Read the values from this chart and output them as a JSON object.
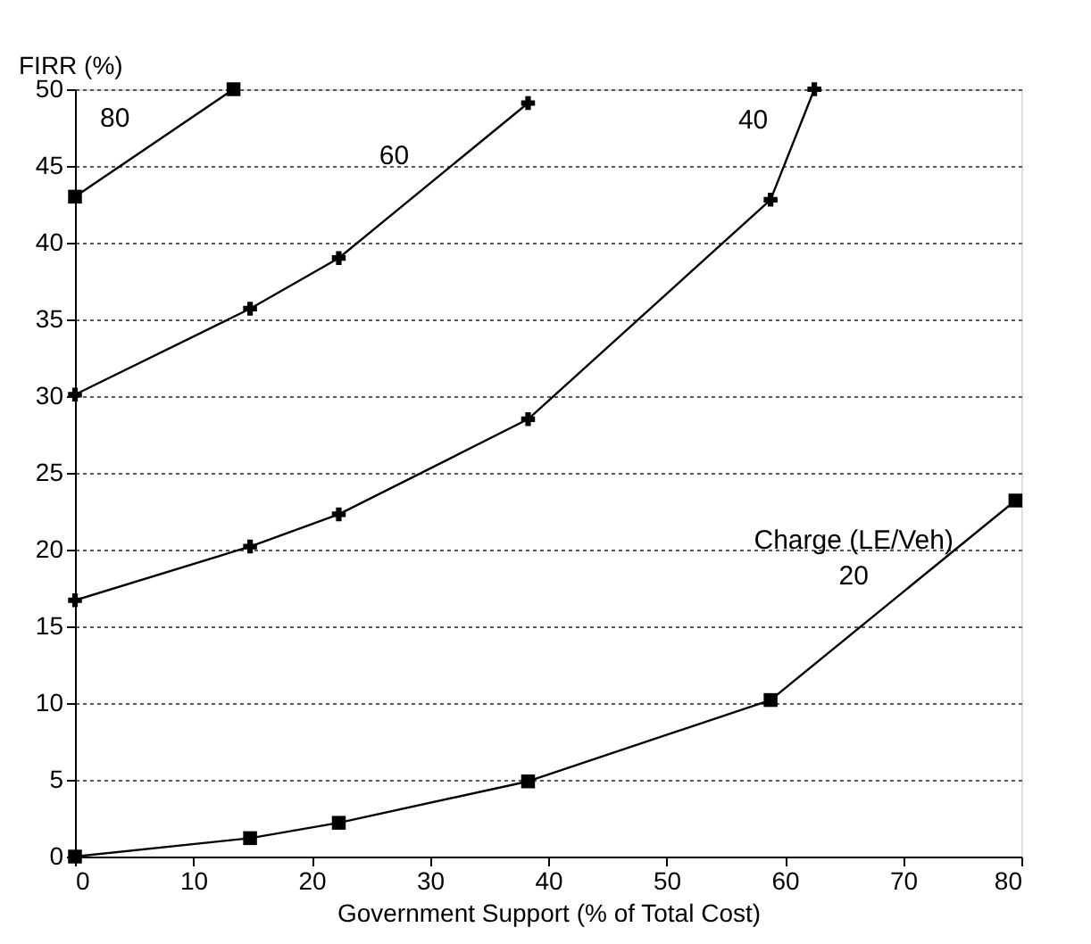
{
  "chart_data": {
    "type": "line",
    "xlabel": "Government Support (% of Total Cost)",
    "ylabel": "FIRR (%)",
    "xlim": [
      0,
      80
    ],
    "xticks": [
      0,
      10,
      20,
      30,
      40,
      50,
      60,
      70,
      80
    ],
    "ylim": [
      0,
      50
    ],
    "yticks": [
      0,
      5,
      10,
      15,
      20,
      25,
      30,
      35,
      40,
      45,
      50
    ],
    "grid": "y",
    "line_style": "solid",
    "legend_title": "Charge (LE/Veh)",
    "series": [
      {
        "name": "20",
        "color": "#000000",
        "marker": "square",
        "x": [
          0,
          14.8,
          22.3,
          38.3,
          58.8,
          79.5
        ],
        "values": [
          0,
          1.2,
          2.2,
          4.9,
          10.2,
          23.2
        ]
      },
      {
        "name": "40",
        "color": "#000000",
        "marker": "cross",
        "x": [
          0,
          14.8,
          22.3,
          38.3,
          58.8,
          62.5
        ],
        "values": [
          16.7,
          20.2,
          22.3,
          28.5,
          42.8,
          50
        ]
      },
      {
        "name": "60",
        "color": "#000000",
        "marker": "cross",
        "x": [
          0,
          14.8,
          22.3,
          38.3
        ],
        "values": [
          30.1,
          35.7,
          39.0,
          49.1
        ]
      },
      {
        "name": "80",
        "color": "#000000",
        "marker": "square",
        "x": [
          0,
          13.4
        ],
        "values": [
          43.0,
          50
        ]
      }
    ]
  }
}
